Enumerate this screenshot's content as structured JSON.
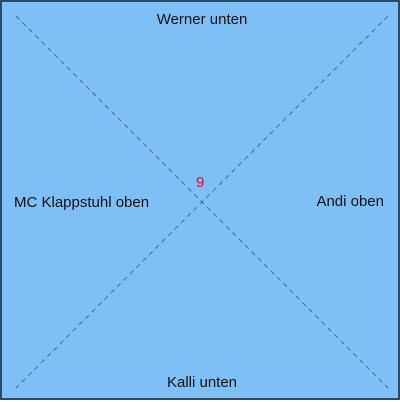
{
  "players": {
    "top": "Werner unten",
    "left": "MC Klappstuhl oben",
    "right": "Andi oben",
    "bottom": "Kalli unten"
  },
  "center": {
    "value": "9",
    "color": "#d8102a"
  },
  "colors": {
    "board_background": "#7ec0f5",
    "board_border": "#2a4a6a",
    "diagonal_lines": "#4a6a8a"
  }
}
